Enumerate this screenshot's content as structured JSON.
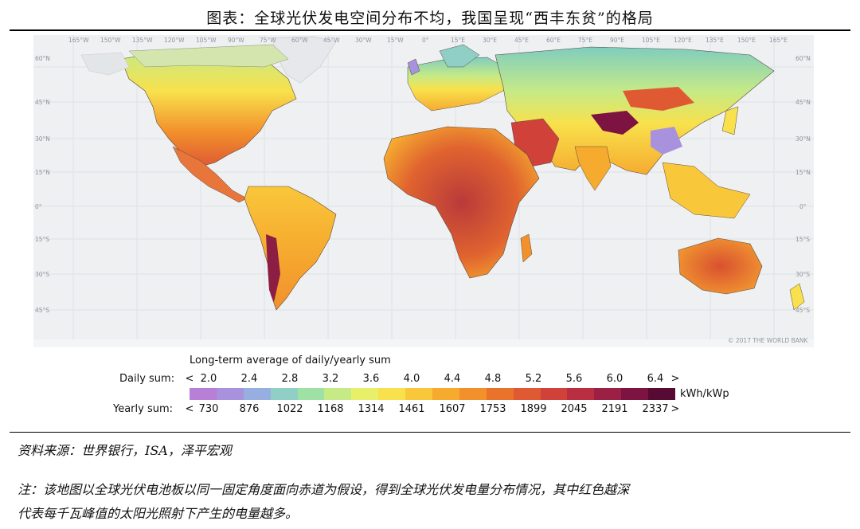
{
  "title": "图表：全球光伏发电空间分布不均，我国呈现“西丰东贫”的格局",
  "map": {
    "lon_labels": [
      "165°W",
      "150°W",
      "135°W",
      "120°W",
      "105°W",
      "90°W",
      "75°W",
      "60°W",
      "45°W",
      "30°W",
      "15°W",
      "0°",
      "15°E",
      "30°E",
      "45°E",
      "60°E",
      "75°E",
      "90°E",
      "105°E",
      "120°E",
      "135°E",
      "150°E",
      "165°E"
    ],
    "lat_labels": [
      "60°N",
      "45°N",
      "30°N",
      "15°N",
      "0°",
      "15°S",
      "30°S",
      "45°S"
    ],
    "copyright": "© 2017 THE WORLD BANK"
  },
  "legend": {
    "title": "Long-term average of daily/yearly sum",
    "daily_label": "Daily sum:",
    "yearly_label": "Yearly sum:",
    "daily_ticks": [
      "<",
      "2.0",
      "2.4",
      "2.8",
      "3.2",
      "3.6",
      "4.0",
      "4.4",
      "4.8",
      "5.2",
      "5.6",
      "6.0",
      "6.4",
      ">"
    ],
    "yearly_ticks": [
      "<",
      "730",
      "876",
      "1022",
      "1168",
      "1314",
      "1461",
      "1607",
      "1753",
      "1899",
      "2045",
      "2191",
      "2337",
      ">"
    ],
    "unit": "kWh/kWp",
    "colors": [
      "#b77fd6",
      "#a892dd",
      "#97aee0",
      "#8fcfc6",
      "#9fe0a4",
      "#c6ea86",
      "#e8f06a",
      "#f8e14c",
      "#f9c73a",
      "#f6ab2f",
      "#f2902c",
      "#ea732c",
      "#df5a33",
      "#cf4139",
      "#b92e41",
      "#9c1f45",
      "#7c1341",
      "#570a33"
    ]
  },
  "source": "资料来源：世界银行，ISA，泽平宏观",
  "note_lines": [
    "注：该地图以全球光伏电池板以同一固定角度面向赤道为假设，得到全球光伏发电量分布情况，其中红色越深",
    "代表每千瓦峰值的太阳光照射下产生的电量越多。"
  ]
}
